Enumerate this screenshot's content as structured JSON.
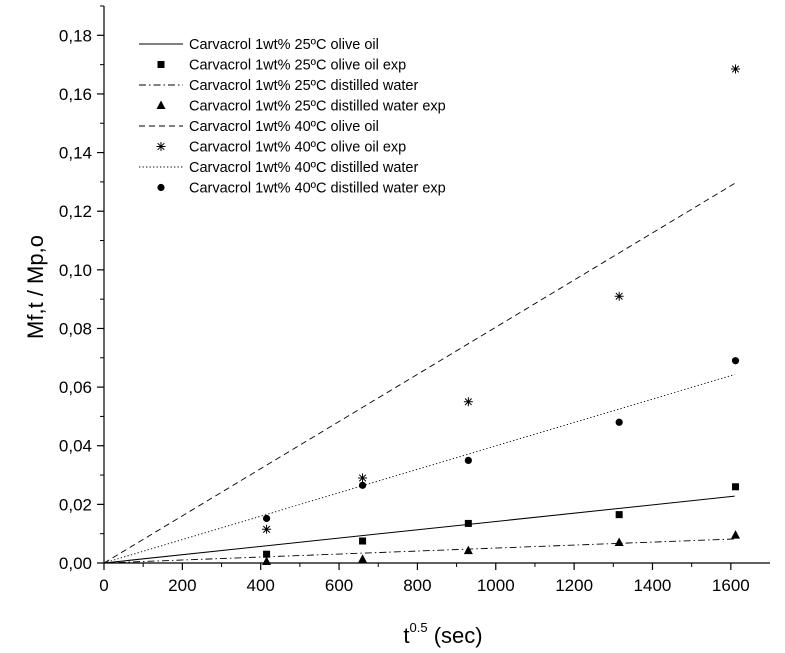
{
  "chart_data": {
    "type": "scatter",
    "title": "",
    "xlabel": {
      "base": "t",
      "sup": "0.5",
      "rest": " (sec)"
    },
    "ylabel": "Mf,t / Mp,o",
    "xlim": [
      0,
      1700
    ],
    "ylim": [
      0,
      0.19
    ],
    "x_ticks": [
      0,
      200,
      400,
      600,
      800,
      1000,
      1200,
      1400,
      1600
    ],
    "x_tick_labels": [
      "0",
      "200",
      "400",
      "600",
      "800",
      "1000",
      "1200",
      "1400",
      "1600"
    ],
    "y_ticks": [
      0,
      0.02,
      0.04,
      0.06,
      0.08,
      0.1,
      0.12,
      0.14,
      0.16,
      0.18
    ],
    "y_tick_labels": [
      "0,00",
      "0,02",
      "0,04",
      "0,06",
      "0,08",
      "0,10",
      "0,12",
      "0,14",
      "0,16",
      "0,18"
    ],
    "grid": false,
    "legend_position": "top-left",
    "series": [
      {
        "name": "Carvacrol 1wt% 25ºC olive oil",
        "kind": "line",
        "style": "solid",
        "x": [
          0,
          1610
        ],
        "y": [
          0,
          0.0228
        ]
      },
      {
        "name": "Carvacrol 1wt% 25ºC olive oil exp",
        "kind": "points",
        "marker": "square",
        "x": [
          415,
          660,
          930,
          1315,
          1612
        ],
        "y": [
          0.003,
          0.0075,
          0.0135,
          0.0165,
          0.026
        ]
      },
      {
        "name": "Carvacrol 1wt% 25ºC distilled water",
        "kind": "line",
        "style": "dashdot",
        "x": [
          0,
          1610
        ],
        "y": [
          0,
          0.0082
        ]
      },
      {
        "name": "Carvacrol 1wt% 25ºC distilled water exp",
        "kind": "points",
        "marker": "triangle",
        "x": [
          415,
          660,
          930,
          1315,
          1612
        ],
        "y": [
          0.0005,
          0.0013,
          0.0042,
          0.007,
          0.0095
        ]
      },
      {
        "name": "Carvacrol 1wt% 40ºC olive oil",
        "kind": "line",
        "style": "dashed",
        "x": [
          0,
          1610
        ],
        "y": [
          0,
          0.1295
        ]
      },
      {
        "name": "Carvacrol 1wt% 40ºC olive oil exp",
        "kind": "points",
        "marker": "star",
        "x": [
          415,
          660,
          930,
          1315,
          1612
        ],
        "y": [
          0.0115,
          0.029,
          0.055,
          0.091,
          0.1685
        ]
      },
      {
        "name": "Carvacrol 1wt% 40ºC distilled water",
        "kind": "line",
        "style": "dotted",
        "x": [
          0,
          1610
        ],
        "y": [
          0,
          0.0643
        ]
      },
      {
        "name": "Carvacrol 1wt% 40ºC distilled water exp",
        "kind": "points",
        "marker": "circle",
        "x": [
          415,
          660,
          930,
          1315,
          1612
        ],
        "y": [
          0.0152,
          0.0265,
          0.035,
          0.048,
          0.069
        ]
      }
    ]
  }
}
